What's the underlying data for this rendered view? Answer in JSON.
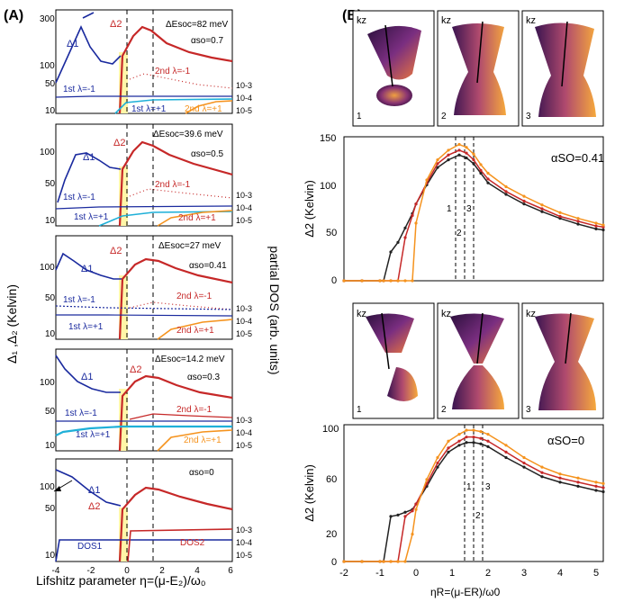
{
  "panel_labels": {
    "a": "(A)",
    "b": "(B)"
  },
  "left": {
    "y_axis_label": "Δ₁ ,Δ₂ (Kelvin)",
    "right_axis_label": "partial DOS (arb. units)",
    "x_axis_label": "Lifshitz parameter η=(μ-E₂)/ω₀",
    "x_ticks": [
      "-4",
      "-2",
      "0",
      "2",
      "4",
      "6"
    ],
    "dos_ticks": [
      "10-3",
      "10-4",
      "10-5"
    ],
    "panels": [
      {
        "y_ticks": [
          "300",
          "100",
          "50",
          "10"
        ],
        "delta_e": "ΔEsoc=82 meV",
        "alpha": "αso=0.7",
        "labels": [
          "Δ1",
          "Δ2",
          "2nd λ=-1",
          "1st λ=-1",
          "1st λ=+1",
          "2nd λ=+1"
        ]
      },
      {
        "y_ticks": [
          "100",
          "50",
          "10"
        ],
        "delta_e": "ΔEsoc=39.6 meV",
        "alpha": "αso=0.5",
        "labels": [
          "Δ1",
          "Δ2",
          "2nd λ=-1",
          "1st λ=-1",
          "1st λ=+1",
          "2nd λ=+1"
        ]
      },
      {
        "y_ticks": [
          "100",
          "50",
          "10"
        ],
        "delta_e": "ΔEsoc=27 meV",
        "alpha": "αso=0.41",
        "labels": [
          "Δ1",
          "Δ2",
          "2nd λ=-1",
          "1st λ=-1",
          "1st λ=+1",
          "2nd λ=+1"
        ]
      },
      {
        "y_ticks": [
          "100",
          "50",
          "10"
        ],
        "delta_e": "ΔEsoc=14.2 meV",
        "alpha": "αso=0.3",
        "labels": [
          "Δ1",
          "Δ2",
          "2nd λ=-1",
          "1st λ=-1",
          "1st λ=+1",
          "2nd λ=+1"
        ]
      },
      {
        "y_ticks": [
          "100",
          "50",
          "10"
        ],
        "delta_e": "",
        "alpha": "αso=0",
        "labels": [
          "Δ1",
          "Δ2",
          "DOS1",
          "DOS2"
        ]
      }
    ]
  },
  "right": {
    "kz": "kz",
    "surface_labels": [
      "1",
      "2",
      "3"
    ],
    "top_chart": {
      "alpha": "αSO=0.41",
      "y_ticks": [
        "150",
        "100",
        "50",
        "0"
      ],
      "y_label": "Δ2 (Kelvin)"
    },
    "bottom_chart": {
      "alpha": "αSO=0",
      "y_ticks": [
        "100",
        "60",
        "20",
        "0"
      ],
      "y_label": "Δ2 (Kelvin)",
      "x_label": "ηR=(μ-ER)/ω0"
    }
  },
  "chart_data": [
    {
      "type": "line",
      "title": "αSO=0.41",
      "xlabel": "ηR",
      "ylabel": "Δ2 (Kelvin)",
      "xlim": [
        -2,
        5.2
      ],
      "ylim": [
        0,
        150
      ],
      "x": [
        -2,
        -1.5,
        -1,
        -0.9,
        -0.7,
        -0.5,
        -0.3,
        -0.1,
        0,
        0.3,
        0.6,
        0.9,
        1.2,
        1.4,
        1.6,
        1.8,
        2,
        2.5,
        3,
        3.5,
        4,
        4.5,
        5,
        5.2
      ],
      "series": [
        {
          "name": "black",
          "color": "#222222",
          "values": [
            0,
            0,
            0,
            0,
            30,
            40,
            55,
            70,
            80,
            100,
            118,
            126,
            131,
            128,
            122,
            112,
            102,
            90,
            80,
            72,
            65,
            59,
            54,
            53
          ]
        },
        {
          "name": "red",
          "color": "#c62828",
          "values": [
            0,
            0,
            0,
            0,
            0,
            0,
            45,
            68,
            80,
            102,
            122,
            131,
            136,
            133,
            126,
            115,
            106,
            93,
            83,
            75,
            67,
            62,
            57,
            56
          ]
        },
        {
          "name": "orange",
          "color": "#f5931e",
          "values": [
            0,
            0,
            0,
            0,
            0,
            0,
            0,
            0,
            60,
            105,
            126,
            136,
            142,
            139,
            132,
            121,
            112,
            98,
            88,
            79,
            71,
            65,
            60,
            58
          ]
        }
      ]
    },
    {
      "type": "line",
      "title": "αSO=0",
      "xlabel": "ηR=(μ-ER)/ω0",
      "ylabel": "Δ2 (Kelvin)",
      "xlim": [
        -2,
        5.2
      ],
      "ylim": [
        0,
        100
      ],
      "x": [
        -2,
        -1.5,
        -1,
        -0.9,
        -0.7,
        -0.5,
        -0.3,
        -0.1,
        0,
        0.3,
        0.6,
        0.9,
        1.2,
        1.4,
        1.6,
        1.8,
        2,
        2.5,
        3,
        3.5,
        4,
        4.5,
        5,
        5.2
      ],
      "series": [
        {
          "name": "black",
          "color": "#222222",
          "values": [
            0,
            0,
            0,
            0,
            33,
            34,
            36,
            38,
            42,
            55,
            69,
            80,
            85,
            87,
            87,
            86,
            84,
            76,
            69,
            62,
            58,
            55,
            52,
            51
          ]
        },
        {
          "name": "red",
          "color": "#c62828",
          "values": [
            0,
            0,
            0,
            0,
            0,
            0,
            33,
            37,
            42,
            57,
            72,
            83,
            88,
            91,
            91,
            90,
            88,
            80,
            72,
            65,
            61,
            58,
            55,
            54
          ]
        },
        {
          "name": "orange",
          "color": "#f5931e",
          "values": [
            0,
            0,
            0,
            0,
            0,
            0,
            0,
            20,
            38,
            60,
            76,
            88,
            93,
            96,
            96,
            95,
            93,
            85,
            76,
            69,
            64,
            61,
            58,
            57
          ]
        }
      ]
    }
  ]
}
